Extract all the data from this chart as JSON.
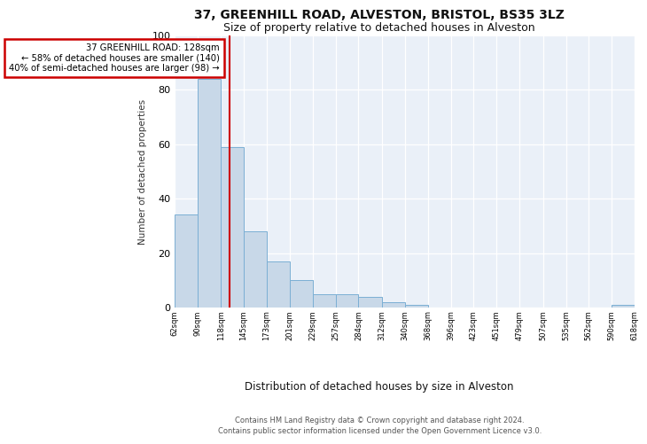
{
  "title1": "37, GREENHILL ROAD, ALVESTON, BRISTOL, BS35 3LZ",
  "title2": "Size of property relative to detached houses in Alveston",
  "xlabel": "Distribution of detached houses by size in Alveston",
  "ylabel": "Number of detached properties",
  "bin_edges": [
    62,
    90,
    118,
    145,
    173,
    201,
    229,
    257,
    284,
    312,
    340,
    368,
    396,
    423,
    451,
    479,
    507,
    535,
    562,
    590,
    618
  ],
  "bar_heights": [
    34,
    84,
    59,
    28,
    17,
    10,
    5,
    5,
    4,
    2,
    1,
    0,
    0,
    0,
    0,
    0,
    0,
    0,
    0,
    1
  ],
  "bar_color": "#c8d8e8",
  "bar_edge_color": "#7bafd4",
  "red_line_x": 128,
  "annotation_text": "37 GREENHILL ROAD: 128sqm\n← 58% of detached houses are smaller (140)\n40% of semi-detached houses are larger (98) →",
  "annotation_box_color": "#ffffff",
  "annotation_box_edge": "#cc0000",
  "footer1": "Contains HM Land Registry data © Crown copyright and database right 2024.",
  "footer2": "Contains public sector information licensed under the Open Government Licence v3.0.",
  "ylim": [
    0,
    100
  ],
  "yticks": [
    0,
    20,
    40,
    60,
    80,
    100
  ],
  "background_color": "#eaf0f8",
  "fig_background": "#ffffff",
  "title1_fontsize": 10,
  "title2_fontsize": 9
}
